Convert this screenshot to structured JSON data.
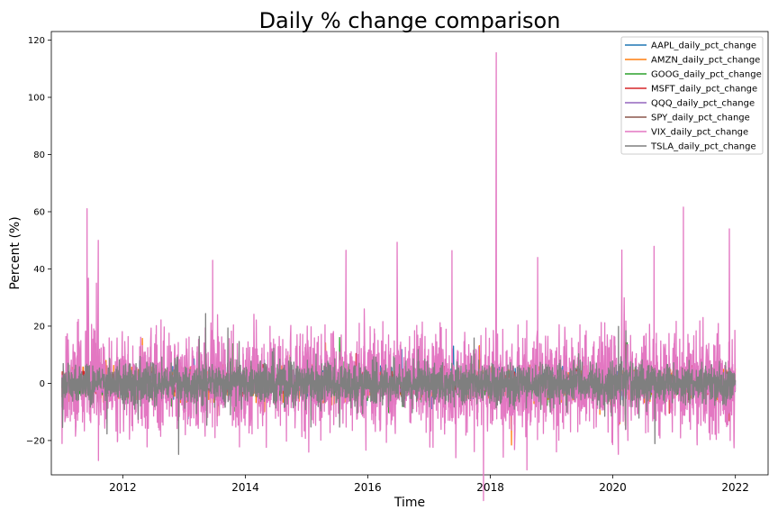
{
  "chart_data": {
    "type": "line",
    "title": "Daily % change comparison",
    "xlabel": "Time",
    "ylabel": "Percent (%)",
    "x_range": [
      "2011-01-03",
      "2021-12-31"
    ],
    "xlim": [
      "2010-11-01",
      "2022-07-15"
    ],
    "ylim": [
      -32,
      123
    ],
    "x_ticks": [
      "2012",
      "2014",
      "2016",
      "2018",
      "2020",
      "2022"
    ],
    "y_ticks": [
      -20,
      0,
      20,
      40,
      60,
      80,
      100,
      120
    ],
    "legend_position": "top-right",
    "grid": false,
    "series": [
      {
        "name": "AAPL_daily_pct_change",
        "color": "#1f77b4",
        "amplitude": 2.2,
        "notable": [
          [
            "2012-04-10",
            8
          ],
          [
            "2013-01-24",
            -12.4
          ],
          [
            "2014-04-24",
            8.2
          ],
          [
            "2020-03-13",
            12
          ],
          [
            "2020-03-16",
            -12.9
          ]
        ]
      },
      {
        "name": "AMZN_daily_pct_change",
        "color": "#ff7f0e",
        "amplitude": 2.7,
        "notable": [
          [
            "2012-04-27",
            15.7
          ],
          [
            "2014-04-25",
            -9.9
          ],
          [
            "2015-04-24",
            14.1
          ],
          [
            "2015-10-23",
            6.2
          ],
          [
            "2017-10-27",
            13.2
          ],
          [
            "2021-07-30",
            -7.6
          ]
        ]
      },
      {
        "name": "GOOG_daily_pct_change",
        "color": "#2ca02c",
        "amplitude": 2.0,
        "notable": [
          [
            "2012-10-18",
            -8
          ],
          [
            "2013-10-18",
            13.8
          ],
          [
            "2015-07-17",
            16
          ],
          [
            "2020-03-16",
            -11.1
          ]
        ]
      },
      {
        "name": "MSFT_daily_pct_change",
        "color": "#d62728",
        "amplitude": 2.0,
        "notable": [
          [
            "2013-07-19",
            -11.4
          ],
          [
            "2015-10-23",
            10.4
          ],
          [
            "2020-03-13",
            14.2
          ],
          [
            "2020-03-16",
            -14.7
          ]
        ]
      },
      {
        "name": "QQQ_daily_pct_change",
        "color": "#9467bd",
        "amplitude": 1.5,
        "notable": [
          [
            "2020-03-13",
            8.5
          ],
          [
            "2020-03-16",
            -11.9
          ]
        ]
      },
      {
        "name": "SPY_daily_pct_change",
        "color": "#8c564b",
        "amplitude": 1.3,
        "notable": [
          [
            "2011-08-08",
            -6.5
          ],
          [
            "2020-03-16",
            -10.9
          ],
          [
            "2020-03-24",
            9.1
          ]
        ]
      },
      {
        "name": "VIX_daily_pct_change",
        "color": "#e377c2",
        "amplitude": 8.5,
        "notable": [
          [
            "2011-08-08",
            50
          ],
          [
            "2011-08-09",
            -27
          ],
          [
            "2011-07-28",
            35
          ],
          [
            "2013-06-20",
            43
          ],
          [
            "2015-08-24",
            46.5
          ],
          [
            "2016-06-24",
            49.3
          ],
          [
            "2017-05-17",
            46.4
          ],
          [
            "2017-06-09",
            -26
          ],
          [
            "2018-02-05",
            115.6
          ],
          [
            "2018-10-10",
            44
          ],
          [
            "2020-02-24",
            46.6
          ],
          [
            "2020-03-09",
            29.9
          ],
          [
            "2020-09-03",
            47.9
          ],
          [
            "2021-02-25",
            61.6
          ],
          [
            "2021-11-26",
            54
          ],
          [
            "2021-12-01",
            -20
          ]
        ]
      },
      {
        "name": "TSLA_daily_pct_change",
        "color": "#7f7f7f",
        "amplitude": 3.8,
        "notable": [
          [
            "2013-05-09",
            24.4
          ],
          [
            "2013-04-01",
            16.4
          ],
          [
            "2020-02-04",
            19.9
          ],
          [
            "2020-09-08",
            -21.1
          ],
          [
            "2020-03-19",
            18.4
          ],
          [
            "2020-03-18",
            -16
          ]
        ]
      }
    ]
  }
}
